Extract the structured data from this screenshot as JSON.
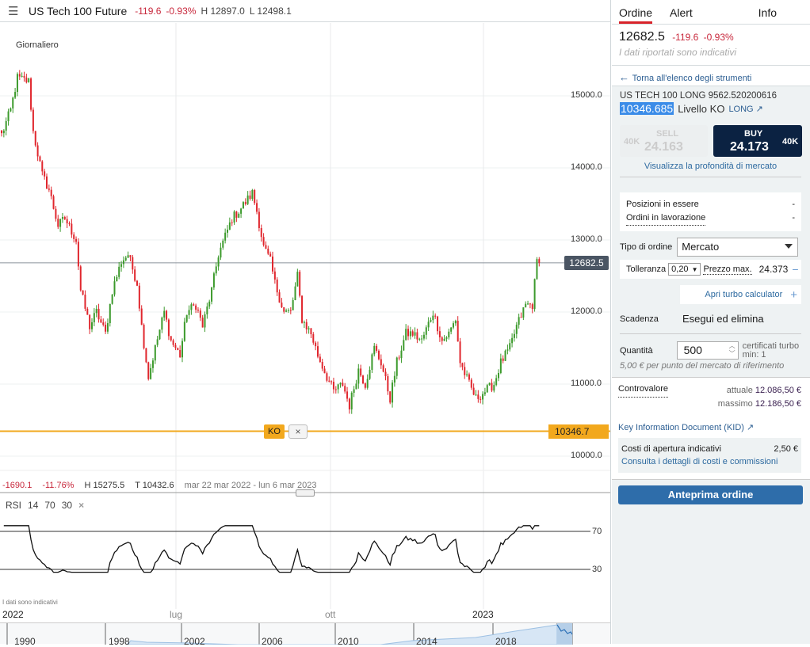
{
  "header": {
    "title": "US Tech 100 Future",
    "change": "-119.6",
    "change_pct": "-0.93%",
    "high": "H 12897.0",
    "low": "L 12498.1"
  },
  "chart": {
    "interval": "Giornaliero",
    "y_ticks": [
      "15000.0",
      "14000.0",
      "13000.0",
      "12000.0",
      "11000.0",
      "10000.0"
    ],
    "last_price_tag": "12682.5",
    "ko_tag": "10346.7",
    "ko_badge": "KO",
    "ko_remove": "×",
    "stats": {
      "change": "-1690.1",
      "change_pct": "-11.76%",
      "high": "H 15275.5",
      "low": "T 10432.6",
      "range": "mar 22 mar 2022 - lun 6 mar 2023"
    },
    "rsi": {
      "label": "RSI",
      "period": "14",
      "upper": "70",
      "lower": "30",
      "remove": "×"
    },
    "disclaimer": "I dati sono indicativi",
    "time_labels": [
      "2022",
      "lug",
      "ott",
      "2023"
    ],
    "navigator_years": [
      "1990",
      "1998",
      "2002",
      "2006",
      "2010",
      "2014",
      "2018"
    ]
  },
  "chart_data": {
    "type": "candlestick",
    "interval": "daily",
    "ylim": [
      9500,
      15800
    ],
    "y_ticks": [
      10000,
      11000,
      12000,
      13000,
      14000,
      15000
    ],
    "last_price": 12682.5,
    "ko_level": 10346.7,
    "rsi_levels": [
      70,
      30
    ],
    "close_keypoints": [
      [
        0,
        14460
      ],
      [
        4,
        14800
      ],
      [
        7,
        15250
      ],
      [
        12,
        15200
      ],
      [
        14,
        14500
      ],
      [
        18,
        13900
      ],
      [
        21,
        13700
      ],
      [
        25,
        13200
      ],
      [
        28,
        13300
      ],
      [
        33,
        13000
      ],
      [
        35,
        12300
      ],
      [
        39,
        11800
      ],
      [
        42,
        12000
      ],
      [
        46,
        11700
      ],
      [
        49,
        12300
      ],
      [
        53,
        12700
      ],
      [
        56,
        12800
      ],
      [
        60,
        12400
      ],
      [
        62,
        11800
      ],
      [
        65,
        11100
      ],
      [
        68,
        11500
      ],
      [
        72,
        12000
      ],
      [
        75,
        11600
      ],
      [
        79,
        11400
      ],
      [
        82,
        12000
      ],
      [
        86,
        12100
      ],
      [
        89,
        11800
      ],
      [
        93,
        12300
      ],
      [
        96,
        12800
      ],
      [
        102,
        13300
      ],
      [
        105,
        13400
      ],
      [
        111,
        13650
      ],
      [
        113,
        13400
      ],
      [
        116,
        12900
      ],
      [
        119,
        12700
      ],
      [
        121,
        12400
      ],
      [
        125,
        12000
      ],
      [
        128,
        12000
      ],
      [
        131,
        12500
      ],
      [
        133,
        11900
      ],
      [
        137,
        11700
      ],
      [
        140,
        11400
      ],
      [
        144,
        11100
      ],
      [
        147,
        10900
      ],
      [
        151,
        11000
      ],
      [
        154,
        10700
      ],
      [
        158,
        11200
      ],
      [
        161,
        11000
      ],
      [
        165,
        11500
      ],
      [
        168,
        11300
      ],
      [
        172,
        10800
      ],
      [
        175,
        11300
      ],
      [
        179,
        11700
      ],
      [
        182,
        11700
      ],
      [
        186,
        11600
      ],
      [
        191,
        12000
      ],
      [
        195,
        11600
      ],
      [
        198,
        11700
      ],
      [
        201,
        11900
      ],
      [
        203,
        11300
      ],
      [
        207,
        11000
      ],
      [
        210,
        10800
      ],
      [
        214,
        10900
      ],
      [
        218,
        11000
      ],
      [
        221,
        11300
      ],
      [
        225,
        11500
      ],
      [
        228,
        11800
      ],
      [
        232,
        12100
      ],
      [
        235,
        12100
      ],
      [
        237,
        12700
      ],
      [
        238,
        12682.5
      ]
    ]
  },
  "sidebar": {
    "tabs": [
      "Ordine",
      "Alert",
      "Info"
    ],
    "price": "12682.5",
    "change": "-119.6",
    "change_pct": "-0.93%",
    "indicative": "I dati riportati sono indicativi",
    "back": "Torna all'elenco degli strumenti",
    "instrument": "US TECH 100 LONG 9562.520200616",
    "ko_value": "10346.685",
    "ko_label": "Livello KO",
    "direction": "LONG ↗",
    "sell": {
      "label": "SELL",
      "price": "24.163",
      "size": "40K"
    },
    "buy": {
      "label": "BUY",
      "price": "24.173",
      "size": "40K"
    },
    "depth": "Visualizza la profondità di mercato",
    "positions": {
      "label": "Posizioni in essere",
      "value": "-"
    },
    "orders": {
      "label": "Ordini in lavorazione",
      "value": "-"
    },
    "order_type": {
      "label": "Tipo di ordine",
      "value": "Mercato"
    },
    "tolerance": {
      "label": "Tolleranza",
      "value": "0,20",
      "max_label": "Prezzo max.",
      "max_value": "24.373",
      "toggle": "−"
    },
    "turbo_calc": {
      "label": "Apri turbo calculator",
      "toggle": "+"
    },
    "expiry": {
      "label": "Scadenza",
      "value": "Esegui ed elimina"
    },
    "quantity": {
      "label": "Quantità",
      "value": "500",
      "unit": "certificati turbo",
      "min": "min: 1",
      "note": "5,00 € per punto del mercato di riferimento"
    },
    "countervalue": {
      "label": "Controvalore",
      "current_label": "attuale",
      "current": "12.086,50 €",
      "max_label": "massimo",
      "max": "12.186,50 €"
    },
    "kid": "Key Information Document (KID)",
    "costs": {
      "label": "Costi di apertura indicativi",
      "value": "2,50 €",
      "link": "Consulta i dettagli di costi e commissioni"
    },
    "preview": "Anteprima ordine"
  }
}
